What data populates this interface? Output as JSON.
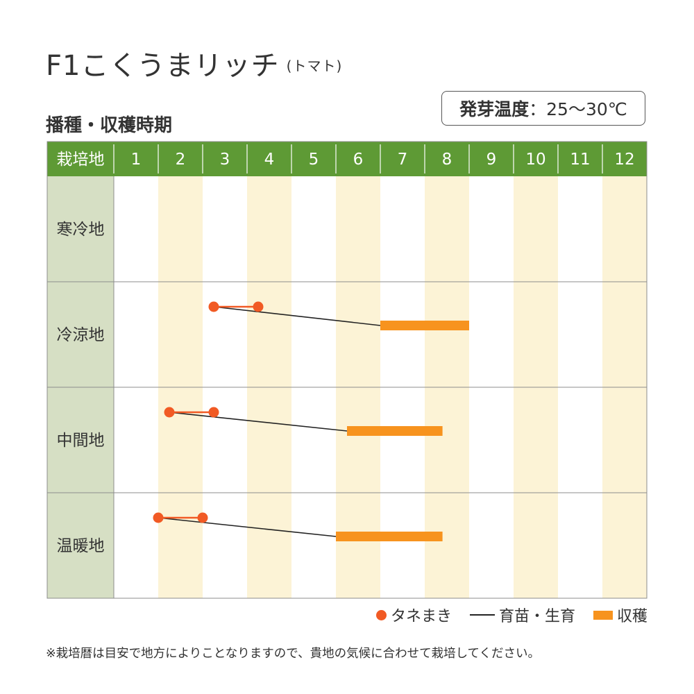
{
  "title": {
    "main": "F1こくうまリッチ",
    "sub": "(トマト)"
  },
  "subtitle": "播種・収穫時期",
  "germination": {
    "label": "発芽温度",
    "value": "25〜30℃"
  },
  "colors": {
    "header_green": "#5e9a35",
    "label_col_bg": "#d6dfc4",
    "stripe_bg": "#fcf3d6",
    "sowing_red": "#f15a24",
    "harvest_orange": "#f7931e",
    "seedling_line": "#222222"
  },
  "chart_data": {
    "type": "gantt",
    "header_label": "栽培地",
    "months": [
      "1",
      "2",
      "3",
      "4",
      "5",
      "6",
      "7",
      "8",
      "9",
      "10",
      "11",
      "12"
    ],
    "regions": [
      {
        "name": "寒冷地",
        "sowing": null,
        "growing": null,
        "harvest": null
      },
      {
        "name": "冷涼地",
        "sowing": [
          3.25,
          4.25
        ],
        "growing": [
          3.25,
          7.0
        ],
        "harvest": [
          7.0,
          9.0
        ]
      },
      {
        "name": "中間地",
        "sowing": [
          2.25,
          3.25
        ],
        "growing": [
          2.25,
          6.25
        ],
        "harvest": [
          6.25,
          8.4
        ]
      },
      {
        "name": "温暖地",
        "sowing": [
          2.0,
          3.0
        ],
        "growing": [
          2.0,
          6.0
        ],
        "harvest": [
          6.0,
          8.4
        ]
      }
    ],
    "legend": [
      {
        "key": "sowing",
        "label": "タネまき",
        "icon": "red-dot-icon"
      },
      {
        "key": "growing",
        "label": "育苗・生育",
        "icon": "black-line-icon"
      },
      {
        "key": "harvest",
        "label": "収穫",
        "icon": "orange-bar-icon"
      }
    ]
  },
  "footnote": "※栽培暦は目安で地方によりことなりますので、貴地の気候に合わせて栽培してください。"
}
